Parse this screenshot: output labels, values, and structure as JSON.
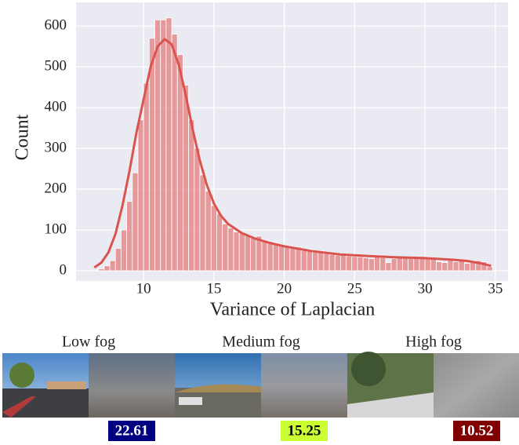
{
  "chart_data": {
    "type": "histogram",
    "xlabel": "Variance of Laplacian",
    "ylabel": "Count",
    "bins": [
      6.8,
      7.2,
      7.6,
      8.0,
      8.4,
      8.8,
      9.2,
      9.6,
      10.0,
      10.4,
      10.8,
      11.2,
      11.6,
      12.0,
      12.4,
      12.8,
      13.2,
      13.6,
      14.0,
      14.4,
      14.8,
      15.2,
      15.6,
      16.0,
      16.4,
      16.8,
      17.2,
      17.6,
      18.0,
      18.4,
      18.8,
      19.2,
      19.6,
      20.0,
      20.4,
      20.8,
      21.2,
      21.6,
      22.0,
      22.4,
      22.8,
      23.2,
      23.6,
      24.0,
      24.4,
      24.8,
      25.2,
      25.6,
      26.0,
      26.4,
      26.8,
      27.2,
      27.6,
      28.0,
      28.4,
      28.8,
      29.2,
      29.6,
      30.0,
      30.4,
      30.8,
      31.2,
      31.6,
      32.0,
      32.4,
      32.8,
      33.2,
      33.6,
      34.0,
      34.4,
      34.8
    ],
    "values": [
      5,
      12,
      25,
      55,
      100,
      170,
      240,
      370,
      460,
      570,
      615,
      615,
      620,
      580,
      530,
      455,
      370,
      300,
      235,
      195,
      160,
      140,
      115,
      105,
      95,
      92,
      88,
      80,
      85,
      75,
      72,
      68,
      65,
      60,
      55,
      58,
      50,
      52,
      45,
      48,
      42,
      40,
      38,
      40,
      36,
      35,
      34,
      32,
      30,
      38,
      32,
      20,
      30,
      33,
      32,
      30,
      32,
      30,
      34,
      30,
      22,
      20,
      25,
      22,
      25,
      18,
      20,
      25,
      22,
      10
    ],
    "color": "#e47e7e",
    "kde": {
      "color": "#d9544f",
      "x": [
        6.5,
        7,
        7.5,
        8,
        8.5,
        9,
        9.5,
        10,
        10.5,
        11,
        11.5,
        12,
        12.5,
        13,
        13.5,
        14,
        14.5,
        15,
        15.5,
        16,
        17,
        18,
        19,
        20,
        22,
        24,
        26,
        28,
        30,
        32,
        33,
        34,
        34.7
      ],
      "y": [
        8,
        20,
        45,
        90,
        160,
        245,
        340,
        420,
        500,
        550,
        568,
        555,
        505,
        430,
        345,
        270,
        210,
        165,
        135,
        115,
        92,
        78,
        68,
        60,
        48,
        40,
        36,
        33,
        31,
        27,
        24,
        18,
        12
      ]
    },
    "xlim": [
      5.2,
      35.9
    ],
    "ylim": [
      -25,
      658
    ],
    "xticks": [
      10,
      15,
      20,
      25,
      30,
      35
    ],
    "yticks": [
      0,
      100,
      200,
      300,
      400,
      500,
      600
    ],
    "grid": true
  },
  "panels": [
    {
      "title": "Low fog",
      "score": 22.61,
      "score_color": "#000080",
      "score_text_color": "#ffffff"
    },
    {
      "title": "Medium fog",
      "score": 15.25,
      "score_color": "#ccff33",
      "score_text_color": "#000000"
    },
    {
      "title": "High fog",
      "score": 10.52,
      "score_color": "#800000",
      "score_text_color": "#ffffff"
    }
  ]
}
